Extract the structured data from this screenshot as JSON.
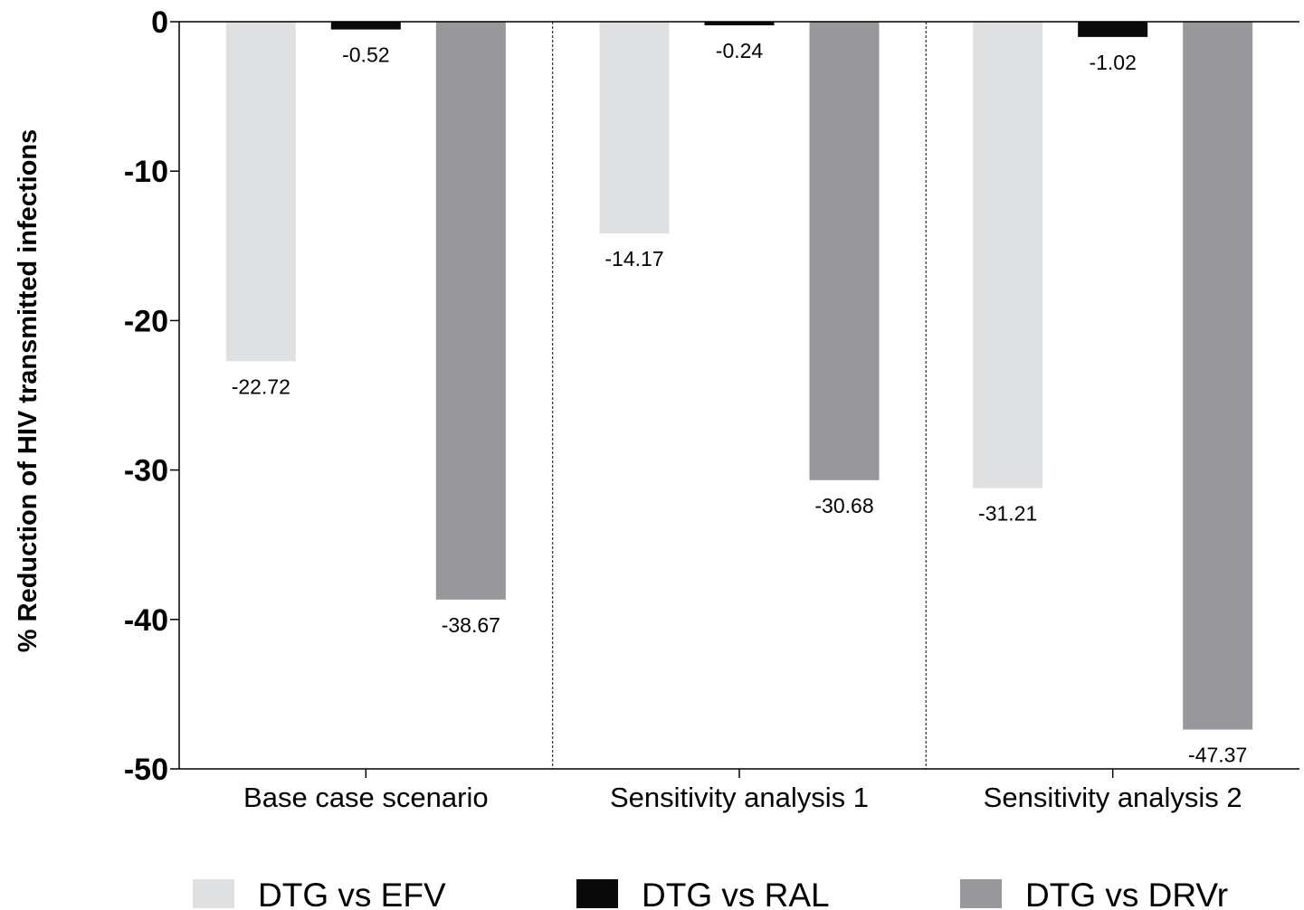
{
  "chart_data": {
    "type": "bar",
    "title": "",
    "xlabel": "",
    "ylabel": "% Reduction of HIV transmitted infections",
    "ylim": [
      -50,
      0
    ],
    "yticks": [
      0,
      -10,
      -20,
      -30,
      -40,
      -50
    ],
    "ytick_labels": [
      "0",
      "-10",
      "-20",
      "-30",
      "-40",
      "-50"
    ],
    "categories": [
      "Base case scenario",
      "Sensitivity analysis 1",
      "Sensitivity analysis 2"
    ],
    "series": [
      {
        "name": "DTG vs EFV",
        "color": "#dfe0e2",
        "values": [
          -22.72,
          -14.17,
          -31.21
        ],
        "labels": [
          "-22.72",
          "-14.17",
          "-31.21"
        ]
      },
      {
        "name": "DTG vs RAL",
        "color": "#0a0a0a",
        "values": [
          -0.52,
          -0.24,
          -1.02
        ],
        "labels": [
          "-0.52",
          "-0.24",
          "-1.02"
        ]
      },
      {
        "name": "DTG vs DRVr",
        "color": "#98989c",
        "values": [
          -38.67,
          -30.68,
          -47.37
        ],
        "labels": [
          "-38.67",
          "-30.68",
          "-47.37"
        ]
      }
    ],
    "grid": false,
    "group_separators": "dashed",
    "legend_placement": "bottom"
  }
}
